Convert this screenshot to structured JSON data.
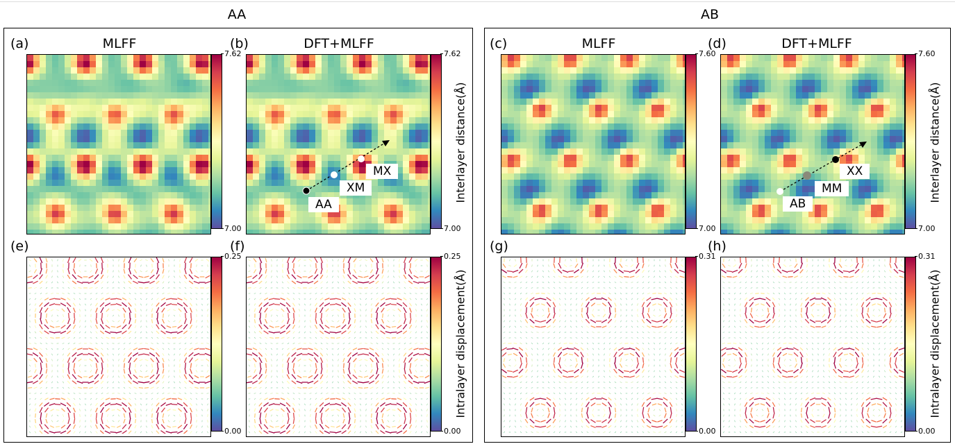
{
  "groups": {
    "aa": "AA",
    "ab": "AB"
  },
  "panels": {
    "a": {
      "letter": "(a)",
      "title": "MLFF"
    },
    "b": {
      "letter": "(b)",
      "title": "DFT+MLFF"
    },
    "c": {
      "letter": "(c)",
      "title": "MLFF"
    },
    "d": {
      "letter": "(d)",
      "title": "DFT+MLFF"
    },
    "e": {
      "letter": "(e)"
    },
    "f": {
      "letter": "(f)"
    },
    "g": {
      "letter": "(g)"
    },
    "h": {
      "letter": "(h)"
    }
  },
  "colorbars": {
    "aa_top": {
      "max": "7.62",
      "min": "7.00"
    },
    "aa_bottom": {
      "max": "0.25",
      "min": "0.00"
    },
    "ab_top": {
      "max": "7.60",
      "min": "7.00"
    },
    "ab_bottom": {
      "max": "0.31",
      "min": "0.00"
    }
  },
  "colorbar_labels": {
    "interlayer": "Interlayer distance(Å)",
    "intralayer": "Intralayer displacement(Å)"
  },
  "markers": {
    "b": [
      "AA",
      "XM",
      "MX"
    ],
    "d": [
      "AB",
      "MM",
      "XX"
    ]
  },
  "colormap": [
    "#9e0142",
    "#d53e4f",
    "#f46d43",
    "#fdae61",
    "#fee08b",
    "#ffffbf",
    "#e6f598",
    "#abdda4",
    "#66c2a5",
    "#3288bd",
    "#5e4fa2"
  ]
}
